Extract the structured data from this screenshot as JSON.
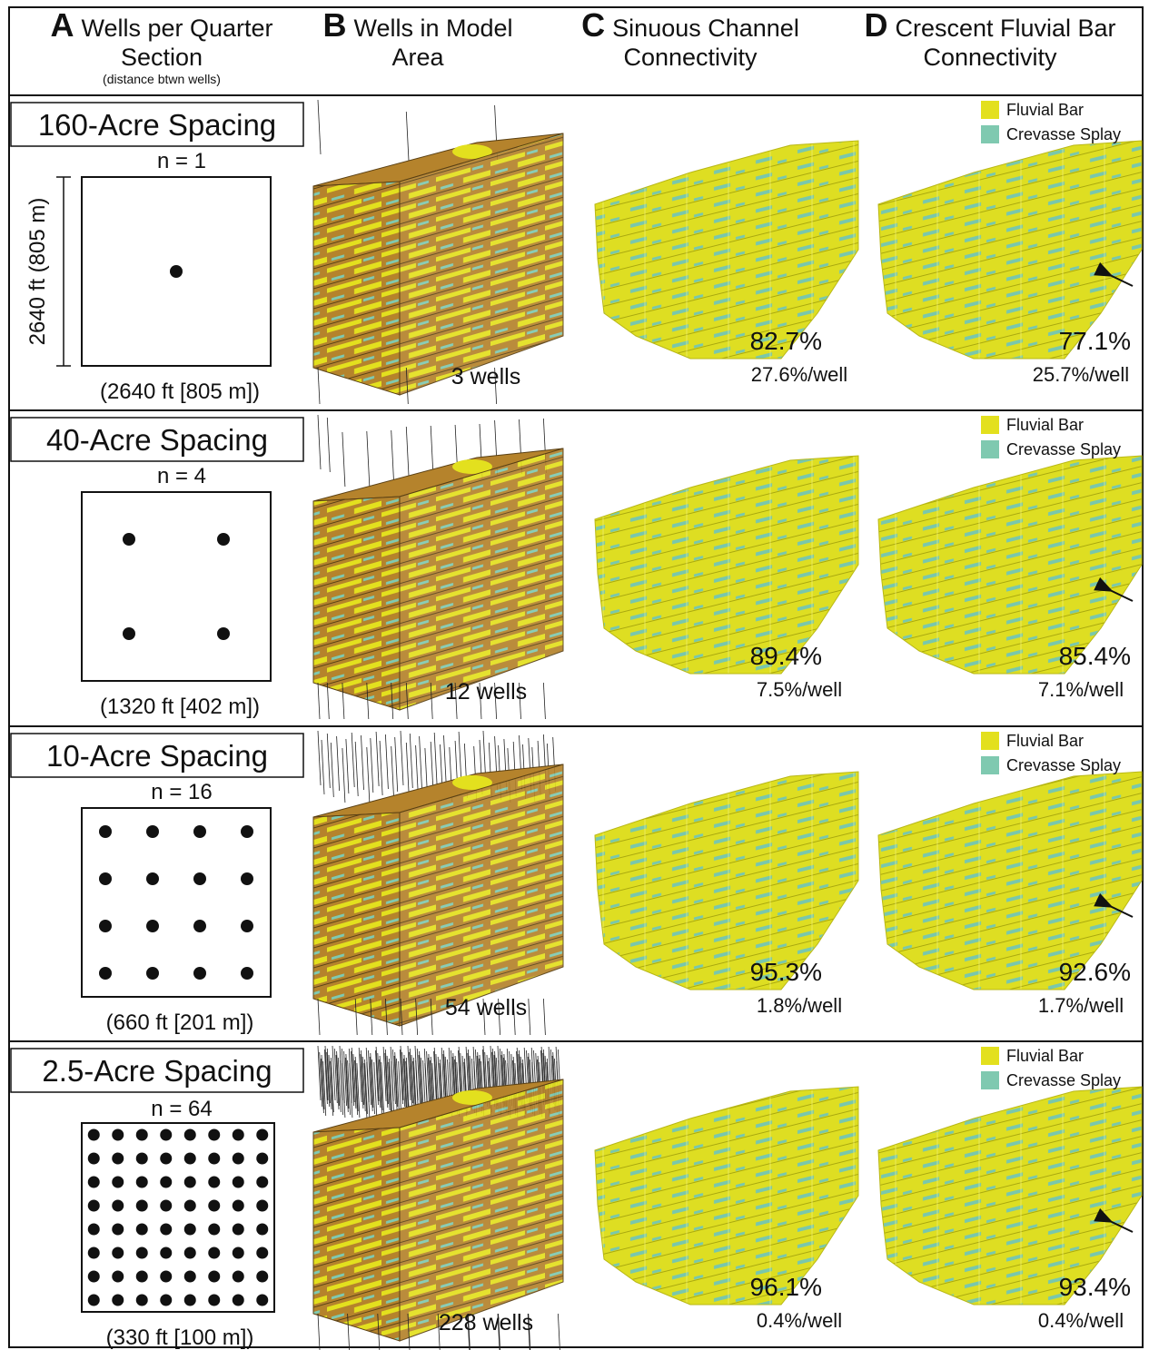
{
  "header": {
    "columns": [
      {
        "letter": "A",
        "title": "Wells per Quarter Section",
        "subtitle": "(distance btwn wells)"
      },
      {
        "letter": "B",
        "title": "Wells in Model Area"
      },
      {
        "letter": "C",
        "title": "Sinuous Channel Connectivity"
      },
      {
        "letter": "D",
        "title": "Crescent Fluvial Bar Connectivity"
      }
    ]
  },
  "side_label": "2640 ft (805 m)",
  "legend": [
    "Fluvial Bar",
    "Crevasse Splay"
  ],
  "rows": [
    {
      "spacing": "160-Acre Spacing",
      "n": "n = 1",
      "distance": "(2640 ft [805 m])",
      "wells": "3 wells",
      "sinuous": {
        "connectivity": "82.7%",
        "per_well": "27.6%/well"
      },
      "crescent": {
        "connectivity": "77.1%",
        "per_well": "25.7%/well"
      }
    },
    {
      "spacing": "40-Acre Spacing",
      "n": "n = 4",
      "distance": "(1320 ft [402 m])",
      "wells": "12 wells",
      "sinuous": {
        "connectivity": "89.4%",
        "per_well": "7.5%/well"
      },
      "crescent": {
        "connectivity": "85.4%",
        "per_well": "7.1%/well"
      }
    },
    {
      "spacing": "10-Acre Spacing",
      "n": "n = 16",
      "distance": "(660 ft [201 m])",
      "wells": "54 wells",
      "sinuous": {
        "connectivity": "95.3%",
        "per_well": "1.8%/well"
      },
      "crescent": {
        "connectivity": "92.6%",
        "per_well": "1.7%/well"
      }
    },
    {
      "spacing": "2.5-Acre Spacing",
      "n": "n = 64",
      "distance": "(330 ft [100 m])",
      "wells": "228 wells",
      "sinuous": {
        "connectivity": "96.1%",
        "per_well": "0.4%/well"
      },
      "crescent": {
        "connectivity": "93.4%",
        "per_well": "0.4%/well"
      }
    }
  ]
}
